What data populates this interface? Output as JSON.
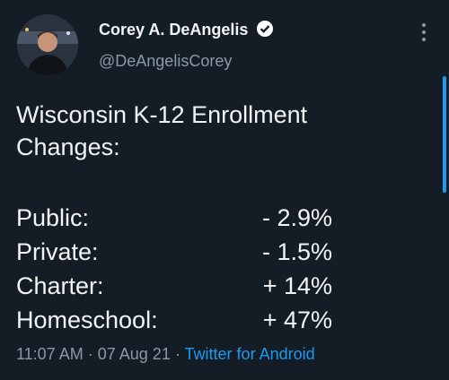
{
  "author": {
    "name": "Corey A. DeAngelis",
    "handle": "@DeAngelisCorey"
  },
  "tweet": {
    "title": "Wisconsin K-12 Enrollment Changes:",
    "rows": [
      [
        "Public:",
        "- 2.9%"
      ],
      [
        "Private:",
        "- 1.5%"
      ],
      [
        "Charter:",
        "+ 14%"
      ],
      [
        "Homeschool:",
        "+ 47%"
      ]
    ]
  },
  "footer": {
    "time": "11:07 AM",
    "separator": "·",
    "date": "07 Aug 21",
    "source": "Twitter for Android"
  }
}
